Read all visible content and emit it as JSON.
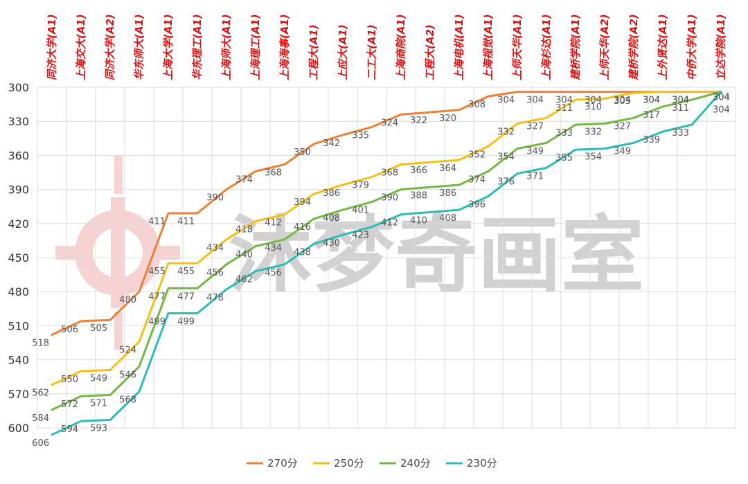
{
  "watermark": "沐梦奇画室",
  "chart_data": {
    "type": "line",
    "categories": [
      "同济大学(A1)",
      "上海交大(A1)",
      "同济大学(A2)",
      "华东师大(A1)",
      "上海大学(A1)",
      "华东理工(A1)",
      "上海师大(A1)",
      "上海理工(A1)",
      "上海海事(A1)",
      "工程大(A1)",
      "上应大(A1)",
      "二工大(A1)",
      "上海商院(A1)",
      "工程大(A2)",
      "上海电机(A1)",
      "上海视觉(A1)",
      "上师天华(A1)",
      "上海杉达(A1)",
      "建桥学院(A1)",
      "上师天华(A2)",
      "建桥学院(A2)",
      "上外贤达(A1)",
      "中侨大学(A1)",
      "立达学院(A1)"
    ],
    "ylim": [
      300,
      600
    ],
    "y_inverted": true,
    "yticks": [
      300,
      330,
      360,
      390,
      420,
      450,
      480,
      510,
      540,
      570,
      600
    ],
    "grid": true,
    "legend_position": "bottom",
    "series": [
      {
        "name": "270分",
        "color": "#f07f34",
        "values": [
          518,
          506,
          505,
          480,
          411,
          411,
          390,
          374,
          368,
          350,
          342,
          335,
          324,
          322,
          320,
          308,
          304,
          304,
          304,
          304,
          304,
          304,
          304,
          304
        ]
      },
      {
        "name": "250分",
        "color": "#f5c013",
        "values": [
          562,
          550,
          549,
          524,
          455,
          455,
          434,
          418,
          412,
          394,
          386,
          379,
          368,
          366,
          364,
          352,
          332,
          327,
          311,
          310,
          305,
          304,
          304,
          304
        ]
      },
      {
        "name": "240分",
        "color": "#72b843",
        "values": [
          584,
          572,
          571,
          546,
          477,
          477,
          456,
          440,
          434,
          416,
          408,
          401,
          390,
          388,
          386,
          374,
          354,
          349,
          333,
          332,
          327,
          317,
          311,
          304
        ]
      },
      {
        "name": "230分",
        "color": "#2bbcb5",
        "values": [
          606,
          594,
          593,
          568,
          499,
          499,
          478,
          462,
          456,
          438,
          430,
          423,
          412,
          410,
          408,
          396,
          376,
          371,
          355,
          354,
          349,
          339,
          333,
          304
        ]
      }
    ]
  }
}
